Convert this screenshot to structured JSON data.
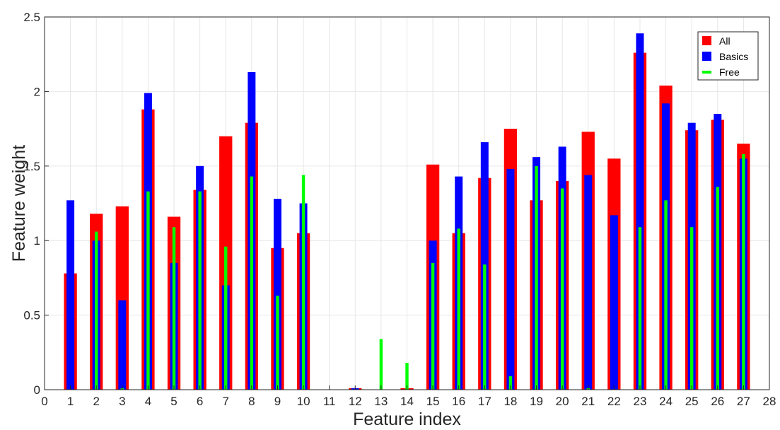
{
  "chart_data": {
    "type": "bar",
    "xlabel": "Feature index",
    "ylabel": "Feature weight",
    "xlim": [
      0,
      28
    ],
    "ylim": [
      0,
      2.5
    ],
    "xticks": [
      "0",
      "1",
      "2",
      "3",
      "4",
      "5",
      "6",
      "7",
      "8",
      "9",
      "10",
      "11",
      "12",
      "13",
      "14",
      "15",
      "16",
      "17",
      "18",
      "19",
      "20",
      "21",
      "22",
      "23",
      "24",
      "25",
      "26",
      "27",
      "28"
    ],
    "yticks": [
      "0",
      "0.5",
      "1",
      "1.5",
      "2",
      "2.5"
    ],
    "grid": true,
    "legend_position": "top-right",
    "x": [
      1,
      2,
      3,
      4,
      5,
      6,
      7,
      8,
      9,
      10,
      11,
      12,
      13,
      14,
      15,
      16,
      17,
      18,
      19,
      20,
      21,
      22,
      23,
      24,
      25,
      26,
      27
    ],
    "series": [
      {
        "name": "All",
        "color": "#ff0000",
        "values": [
          0.78,
          1.18,
          1.23,
          1.88,
          1.16,
          1.34,
          1.7,
          1.79,
          0.95,
          1.05,
          0,
          0.01,
          0,
          0.01,
          1.51,
          1.05,
          1.42,
          1.75,
          1.27,
          1.4,
          1.73,
          1.55,
          2.26,
          2.04,
          1.74,
          1.81,
          1.65
        ]
      },
      {
        "name": "Basics",
        "color": "#0000ff",
        "values": [
          1.27,
          1.0,
          0.6,
          1.99,
          0.85,
          1.5,
          0.7,
          2.13,
          1.28,
          1.25,
          0,
          0.01,
          0,
          0,
          1.0,
          1.43,
          1.66,
          1.48,
          1.56,
          1.63,
          1.44,
          1.17,
          2.39,
          1.92,
          1.79,
          1.85,
          1.55
        ]
      },
      {
        "name": "Free",
        "color": "#00ff00",
        "values": [
          0,
          1.06,
          0.01,
          1.33,
          1.09,
          1.33,
          0.96,
          1.43,
          0.63,
          1.44,
          0,
          0,
          0.34,
          0.18,
          0.85,
          1.08,
          0.84,
          0.09,
          1.5,
          1.35,
          0.01,
          0,
          1.09,
          1.27,
          1.09,
          1.36,
          1.58
        ]
      }
    ]
  }
}
